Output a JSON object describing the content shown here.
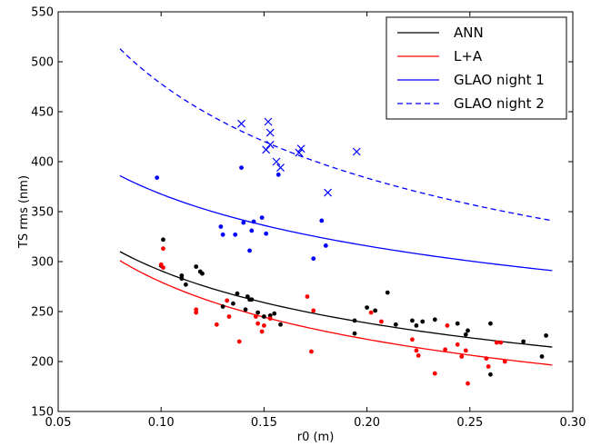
{
  "chart_data": {
    "type": "scatter",
    "title": "",
    "xlabel": "r0 (m)",
    "ylabel": "TS rms (nm)",
    "xlim": [
      0.05,
      0.3
    ],
    "ylim": [
      150,
      550
    ],
    "xticks": [
      "0.05",
      "0.10",
      "0.15",
      "0.20",
      "0.25",
      "0.30"
    ],
    "xtick_values": [
      0.05,
      0.1,
      0.15,
      0.2,
      0.25,
      0.3
    ],
    "yticks": [
      "150",
      "200",
      "250",
      "300",
      "350",
      "400",
      "450",
      "500",
      "550"
    ],
    "ytick_values": [
      150,
      200,
      250,
      300,
      350,
      400,
      450,
      500,
      550
    ],
    "grid": false,
    "legend_position": "top-right",
    "legend": [
      {
        "label": "ANN",
        "color": "#000000",
        "dash": "solid"
      },
      {
        "label": "L+A",
        "color": "#ff0000",
        "dash": "solid"
      },
      {
        "label": "GLAO night 1",
        "color": "#0000ff",
        "dash": "solid"
      },
      {
        "label": "GLAO night 2",
        "color": "#0000ff",
        "dash": "dashed"
      }
    ],
    "lines": [
      {
        "name": "ANN",
        "color": "#000000",
        "dash": "solid",
        "x": [
          0.08,
          0.29
        ],
        "y": [
          310,
          214.5
        ],
        "model": "power"
      },
      {
        "name": "L+A",
        "color": "#ff0000",
        "dash": "solid",
        "x": [
          0.08,
          0.29
        ],
        "y": [
          301,
          196.5
        ],
        "model": "power"
      },
      {
        "name": "GLAO night 1",
        "color": "#0000ff",
        "dash": "solid",
        "x": [
          0.08,
          0.29
        ],
        "y": [
          386,
          291
        ],
        "model": "power"
      },
      {
        "name": "GLAO night 2",
        "color": "#0000ff",
        "dash": "dashed",
        "x": [
          0.08,
          0.29
        ],
        "y": [
          513,
          341
        ],
        "model": "power"
      }
    ],
    "series": [
      {
        "color": "#000000",
        "marker": "dot",
        "points": [
          [
            0.1,
            296
          ],
          [
            0.101,
            322
          ],
          [
            0.11,
            283
          ],
          [
            0.11,
            286
          ],
          [
            0.112,
            277
          ],
          [
            0.117,
            295
          ],
          [
            0.119,
            290
          ],
          [
            0.12,
            288
          ],
          [
            0.13,
            255
          ],
          [
            0.135,
            258
          ],
          [
            0.137,
            268
          ],
          [
            0.141,
            252
          ],
          [
            0.142,
            265
          ],
          [
            0.143,
            262
          ],
          [
            0.144,
            262
          ],
          [
            0.147,
            249
          ],
          [
            0.15,
            245
          ],
          [
            0.153,
            246
          ],
          [
            0.155,
            248
          ],
          [
            0.158,
            237
          ],
          [
            0.194,
            241
          ],
          [
            0.194,
            228
          ],
          [
            0.2,
            254
          ],
          [
            0.204,
            251
          ],
          [
            0.21,
            269
          ],
          [
            0.214,
            237
          ],
          [
            0.222,
            241
          ],
          [
            0.224,
            236
          ],
          [
            0.227,
            240
          ],
          [
            0.233,
            242
          ],
          [
            0.244,
            238
          ],
          [
            0.248,
            227
          ],
          [
            0.249,
            231
          ],
          [
            0.26,
            238
          ],
          [
            0.26,
            187
          ],
          [
            0.276,
            220
          ],
          [
            0.287,
            226
          ],
          [
            0.285,
            205
          ]
        ]
      },
      {
        "color": "#ff0000",
        "marker": "dot",
        "points": [
          [
            0.1,
            297
          ],
          [
            0.101,
            294
          ],
          [
            0.101,
            313
          ],
          [
            0.117,
            252
          ],
          [
            0.117,
            249
          ],
          [
            0.127,
            237
          ],
          [
            0.132,
            261
          ],
          [
            0.133,
            245
          ],
          [
            0.138,
            220
          ],
          [
            0.146,
            245
          ],
          [
            0.147,
            238
          ],
          [
            0.149,
            230
          ],
          [
            0.15,
            236
          ],
          [
            0.153,
            243
          ],
          [
            0.171,
            265
          ],
          [
            0.173,
            210
          ],
          [
            0.174,
            251
          ],
          [
            0.202,
            249
          ],
          [
            0.207,
            240
          ],
          [
            0.222,
            222
          ],
          [
            0.224,
            211
          ],
          [
            0.225,
            206
          ],
          [
            0.233,
            188
          ],
          [
            0.238,
            212
          ],
          [
            0.239,
            236
          ],
          [
            0.244,
            217
          ],
          [
            0.246,
            205
          ],
          [
            0.248,
            211
          ],
          [
            0.249,
            178
          ],
          [
            0.258,
            203
          ],
          [
            0.259,
            195
          ],
          [
            0.263,
            219
          ],
          [
            0.265,
            219
          ],
          [
            0.267,
            200
          ]
        ]
      },
      {
        "color": "#0000ff",
        "marker": "dot",
        "points": [
          [
            0.098,
            384
          ],
          [
            0.139,
            394
          ],
          [
            0.129,
            335
          ],
          [
            0.13,
            327
          ],
          [
            0.136,
            327
          ],
          [
            0.14,
            339
          ],
          [
            0.145,
            340
          ],
          [
            0.144,
            331
          ],
          [
            0.143,
            311
          ],
          [
            0.149,
            344
          ],
          [
            0.151,
            328
          ],
          [
            0.157,
            387
          ],
          [
            0.174,
            303
          ],
          [
            0.178,
            341
          ],
          [
            0.18,
            316
          ]
        ]
      },
      {
        "color": "#0000ff",
        "marker": "x",
        "points": [
          [
            0.139,
            438
          ],
          [
            0.151,
            412
          ],
          [
            0.152,
            440
          ],
          [
            0.153,
            429
          ],
          [
            0.153,
            417
          ],
          [
            0.156,
            400
          ],
          [
            0.158,
            394
          ],
          [
            0.167,
            409
          ],
          [
            0.168,
            413
          ],
          [
            0.181,
            369
          ],
          [
            0.195,
            410
          ]
        ]
      }
    ]
  }
}
